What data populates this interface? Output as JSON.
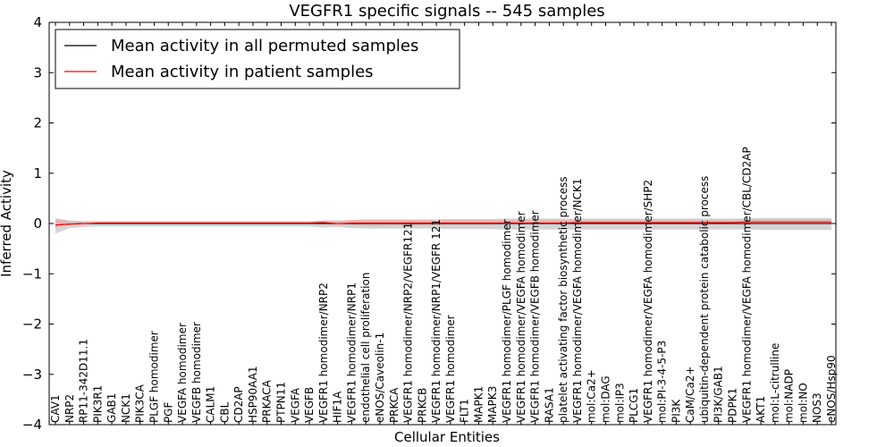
{
  "chart_data": {
    "type": "line",
    "title": "VEGFR1 specific signals -- 545 samples",
    "xlabel": "Cellular Entities",
    "ylabel": "Inferred Activity",
    "ylim": [
      -4,
      4
    ],
    "yticks": [
      "−4",
      "−3",
      "−2",
      "−1",
      "0",
      "1",
      "2",
      "3",
      "4"
    ],
    "grid": false,
    "legend_position": "top-left",
    "categories": [
      "CAV1",
      "NRP2",
      "RP11-342D11.1",
      "PIK3R1",
      "GAB1",
      "NCK1",
      "PIK3CA",
      "PLGF homodimer",
      "PGF",
      "VEGFA homodimer",
      "VEGFB homodimer",
      "CALM1",
      "CBL",
      "CD2AP",
      "HSP90AA1",
      "PRKACA",
      "PTPN11",
      "VEGFA",
      "VEGFB",
      "VEGFR1 homodimer/NRP2",
      "HIF1A",
      "VEGFR1 homodimer/NRP1",
      "endothelial cell proliferation",
      "eNOS/Caveolin-1",
      "PRKCA",
      "VEGFR1 homodimer/NRP2/VEGFR121",
      "PRKCB",
      "VEGFR1 homodimer/NRP1/VEGFR 121",
      "VEGFR1 homodimer",
      "FLT1",
      "MAPK1",
      "MAPK3",
      "VEGFR1 homodimer/PLGF homodimer",
      "VEGFR1 homodimer/VEGFA homodimer",
      "VEGFR1 homodimer/VEGFB homodimer",
      "RASA1",
      "platelet activating factor biosynthetic process",
      "VEGFR1 homodimer/VEGFA homodimer/NCK1",
      "mol:Ca2+",
      "mol:DAG",
      "mol:IP3",
      "PLCG1",
      "VEGFR1 homodimer/VEGFA homodimer/SHP2",
      "mol:PI-3-4-5-P3",
      "PI3K",
      "CaM/Ca2+",
      "ubiquitin-dependent protein catabolic process",
      "PI3K/GAB1",
      "PDPK1",
      "VEGFR1 homodimer/VEGFA homodimer/CBL/CD2AP",
      "AKT1",
      "mol:L-citrulline",
      "mol:NADP",
      "mol:NO",
      "NOS3",
      "eNOS/Hsp90"
    ],
    "series": [
      {
        "name": "Mean activity in all permuted samples",
        "color": "#000000",
        "band_color": "#b0b0b0",
        "values": [
          -0.03,
          -0.01,
          0,
          0,
          0,
          0,
          0,
          0,
          0,
          0,
          0,
          0,
          0,
          0,
          0,
          0,
          0,
          0,
          0,
          0,
          0,
          0,
          0,
          0,
          0,
          0,
          0,
          0,
          0,
          0,
          0,
          0,
          0,
          0,
          0,
          0,
          0,
          0,
          0,
          0,
          0,
          0,
          0,
          0,
          0,
          0,
          0,
          0,
          0,
          0,
          0,
          0,
          0,
          0,
          0,
          0
        ],
        "band_lower": [
          -0.2,
          -0.09,
          -0.07,
          -0.06,
          -0.06,
          -0.06,
          -0.06,
          -0.06,
          -0.06,
          -0.06,
          -0.06,
          -0.06,
          -0.06,
          -0.06,
          -0.06,
          -0.06,
          -0.06,
          -0.06,
          -0.06,
          -0.08,
          -0.07,
          -0.09,
          -0.1,
          -0.1,
          -0.1,
          -0.1,
          -0.1,
          -0.1,
          -0.11,
          -0.11,
          -0.11,
          -0.11,
          -0.12,
          -0.12,
          -0.12,
          -0.12,
          -0.12,
          -0.12,
          -0.12,
          -0.12,
          -0.12,
          -0.12,
          -0.12,
          -0.12,
          -0.12,
          -0.12,
          -0.12,
          -0.12,
          -0.12,
          -0.12,
          -0.13,
          -0.13,
          -0.13,
          -0.13,
          -0.13,
          -0.13
        ],
        "band_upper": [
          0.1,
          0.06,
          0.05,
          0.05,
          0.05,
          0.05,
          0.05,
          0.05,
          0.05,
          0.05,
          0.05,
          0.05,
          0.05,
          0.05,
          0.05,
          0.05,
          0.05,
          0.05,
          0.05,
          0.06,
          0.06,
          0.07,
          0.08,
          0.08,
          0.08,
          0.08,
          0.08,
          0.08,
          0.09,
          0.09,
          0.09,
          0.09,
          0.1,
          0.1,
          0.1,
          0.1,
          0.1,
          0.1,
          0.1,
          0.1,
          0.1,
          0.1,
          0.1,
          0.1,
          0.1,
          0.1,
          0.1,
          0.1,
          0.1,
          0.1,
          0.11,
          0.11,
          0.11,
          0.11,
          0.11,
          0.11
        ]
      },
      {
        "name": "Mean activity in patient samples",
        "color": "#ff0000",
        "band_color": "#f4a0a0",
        "values": [
          -0.03,
          -0.01,
          0,
          0.01,
          0.01,
          0.01,
          0.01,
          0.01,
          0.01,
          0.01,
          0.01,
          0.01,
          0.01,
          0.01,
          0.01,
          0.01,
          0.01,
          0.01,
          0.01,
          0.02,
          0,
          0.01,
          0.01,
          0.01,
          0.01,
          0.01,
          0.01,
          0.01,
          0.01,
          0.01,
          0.01,
          0.01,
          0.01,
          0.01,
          0.01,
          0.01,
          0.01,
          0.02,
          0.02,
          0.02,
          0.02,
          0.02,
          0.02,
          0.02,
          0.02,
          0.02,
          0.02,
          0.02,
          0.02,
          0.03,
          0.03,
          0.03,
          0.03,
          0.03,
          0.03,
          0.03
        ],
        "band_lower": [
          -0.08,
          -0.04,
          -0.02,
          -0.01,
          -0.01,
          -0.01,
          -0.01,
          -0.01,
          -0.01,
          -0.01,
          -0.01,
          -0.01,
          -0.01,
          -0.01,
          -0.01,
          -0.01,
          -0.01,
          -0.01,
          -0.01,
          -0.02,
          -0.03,
          -0.04,
          -0.05,
          -0.05,
          -0.04,
          -0.04,
          -0.04,
          -0.04,
          -0.03,
          -0.03,
          -0.03,
          -0.03,
          -0.02,
          -0.02,
          -0.02,
          -0.02,
          -0.02,
          -0.02,
          -0.02,
          -0.02,
          -0.02,
          -0.02,
          -0.02,
          -0.02,
          -0.02,
          -0.02,
          -0.02,
          -0.02,
          -0.01,
          -0.01,
          -0.01,
          -0.01,
          -0.01,
          -0.01,
          -0.01,
          -0.01
        ],
        "band_upper": [
          0.1,
          0.05,
          0.03,
          0.03,
          0.03,
          0.03,
          0.03,
          0.03,
          0.03,
          0.03,
          0.03,
          0.03,
          0.03,
          0.03,
          0.03,
          0.03,
          0.03,
          0.03,
          0.03,
          0.06,
          0.05,
          0.07,
          0.08,
          0.08,
          0.08,
          0.07,
          0.07,
          0.07,
          0.07,
          0.07,
          0.07,
          0.07,
          0.07,
          0.07,
          0.07,
          0.07,
          0.07,
          0.07,
          0.07,
          0.07,
          0.07,
          0.07,
          0.07,
          0.07,
          0.07,
          0.07,
          0.07,
          0.07,
          0.07,
          0.08,
          0.08,
          0.08,
          0.08,
          0.08,
          0.08,
          0.08
        ]
      }
    ]
  }
}
